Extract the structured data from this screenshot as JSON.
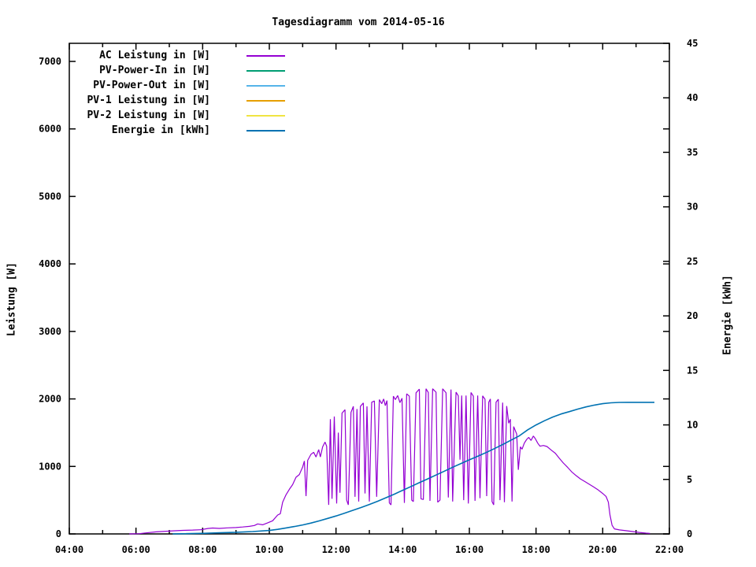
{
  "title": "Tagesdiagramm vom 2014-05-16",
  "chart_data": {
    "type": "line",
    "title": "Tagesdiagramm vom 2014-05-16",
    "grid": false,
    "legend_position": "top-left-inside",
    "colors": {
      "background": "#ffffff",
      "foreground": "#000000"
    },
    "x_axis": {
      "unit": "time",
      "start_hour": 4,
      "end_hour": 22,
      "major_tick_hours": [
        4,
        6,
        8,
        10,
        12,
        14,
        16,
        18,
        20,
        22
      ],
      "major_tick_labels": [
        "04:00",
        "06:00",
        "08:00",
        "10:00",
        "12:00",
        "14:00",
        "16:00",
        "18:00",
        "20:00",
        "22:00"
      ],
      "minor_tick_hours": [
        5,
        7,
        9,
        11,
        13,
        15,
        17,
        19,
        21
      ]
    },
    "y_axis_left": {
      "label": "Leistung [W]",
      "tick_values": [
        0,
        1000,
        2000,
        3000,
        4000,
        5000,
        6000,
        7000
      ],
      "range": [
        0,
        7268
      ]
    },
    "y_axis_right": {
      "label": "Energie [kWh]",
      "tick_values": [
        0,
        5,
        10,
        15,
        20,
        25,
        30,
        35,
        40,
        45
      ],
      "range": [
        0,
        45
      ],
      "mirror_left_ticks": true
    },
    "legend": [
      {
        "label": "AC Leistung in [W]",
        "color": "#9400D3"
      },
      {
        "label": "PV-Power-In in [W]",
        "color": "#009E73"
      },
      {
        "label": "PV-Power-Out in [W]",
        "color": "#56B4E9"
      },
      {
        "label": "PV-1 Leistung in [W]",
        "color": "#E69F00"
      },
      {
        "label": "PV-2 Leistung in [W]",
        "color": "#F0E442"
      },
      {
        "label": "Energie in [kWh]",
        "color": "#0072B2"
      }
    ],
    "series": [
      {
        "name": "AC Leistung in [W]",
        "color": "#9400D3",
        "axis": "left",
        "width": 1.2,
        "points": [
          [
            5.8,
            0
          ],
          [
            6.1,
            3
          ],
          [
            6.3,
            15
          ],
          [
            6.6,
            30
          ],
          [
            6.9,
            40
          ],
          [
            7.1,
            45
          ],
          [
            7.4,
            52
          ],
          [
            7.7,
            57
          ],
          [
            7.95,
            62
          ],
          [
            8.15,
            80
          ],
          [
            8.3,
            88
          ],
          [
            8.5,
            82
          ],
          [
            8.75,
            90
          ],
          [
            9.0,
            95
          ],
          [
            9.2,
            103
          ],
          [
            9.4,
            112
          ],
          [
            9.55,
            125
          ],
          [
            9.65,
            148
          ],
          [
            9.8,
            135
          ],
          [
            9.95,
            165
          ],
          [
            10.1,
            195
          ],
          [
            10.25,
            280
          ],
          [
            10.33,
            300
          ],
          [
            10.4,
            470
          ],
          [
            10.5,
            580
          ],
          [
            10.6,
            660
          ],
          [
            10.7,
            730
          ],
          [
            10.8,
            840
          ],
          [
            10.9,
            880
          ],
          [
            11.0,
            990
          ],
          [
            11.05,
            1080
          ],
          [
            11.1,
            560
          ],
          [
            11.15,
            1090
          ],
          [
            11.25,
            1180
          ],
          [
            11.33,
            1210
          ],
          [
            11.4,
            1140
          ],
          [
            11.48,
            1250
          ],
          [
            11.53,
            1140
          ],
          [
            11.6,
            1290
          ],
          [
            11.67,
            1360
          ],
          [
            11.72,
            1300
          ],
          [
            11.78,
            430
          ],
          [
            11.83,
            1700
          ],
          [
            11.88,
            520
          ],
          [
            11.95,
            1740
          ],
          [
            12.02,
            450
          ],
          [
            12.07,
            1500
          ],
          [
            12.12,
            610
          ],
          [
            12.18,
            1790
          ],
          [
            12.27,
            1840
          ],
          [
            12.32,
            500
          ],
          [
            12.37,
            430
          ],
          [
            12.45,
            1800
          ],
          [
            12.52,
            1890
          ],
          [
            12.57,
            550
          ],
          [
            12.63,
            1850
          ],
          [
            12.68,
            480
          ],
          [
            12.73,
            1890
          ],
          [
            12.82,
            1940
          ],
          [
            12.87,
            600
          ],
          [
            12.93,
            1890
          ],
          [
            13.0,
            480
          ],
          [
            13.07,
            1950
          ],
          [
            13.15,
            1970
          ],
          [
            13.22,
            550
          ],
          [
            13.3,
            1990
          ],
          [
            13.37,
            1930
          ],
          [
            13.43,
            2000
          ],
          [
            13.48,
            1900
          ],
          [
            13.53,
            1975
          ],
          [
            13.6,
            460
          ],
          [
            13.65,
            430
          ],
          [
            13.72,
            2040
          ],
          [
            13.78,
            1990
          ],
          [
            13.85,
            2050
          ],
          [
            13.92,
            1945
          ],
          [
            13.98,
            2010
          ],
          [
            14.05,
            460
          ],
          [
            14.12,
            2075
          ],
          [
            14.2,
            2040
          ],
          [
            14.27,
            500
          ],
          [
            14.32,
            480
          ],
          [
            14.4,
            2090
          ],
          [
            14.5,
            2145
          ],
          [
            14.55,
            520
          ],
          [
            14.62,
            510
          ],
          [
            14.7,
            2150
          ],
          [
            14.77,
            2095
          ],
          [
            14.82,
            490
          ],
          [
            14.9,
            2150
          ],
          [
            15.0,
            2100
          ],
          [
            15.05,
            470
          ],
          [
            15.12,
            500
          ],
          [
            15.2,
            2150
          ],
          [
            15.3,
            2090
          ],
          [
            15.37,
            540
          ],
          [
            15.45,
            2140
          ],
          [
            15.5,
            480
          ],
          [
            15.6,
            2100
          ],
          [
            15.67,
            2045
          ],
          [
            15.72,
            1100
          ],
          [
            15.77,
            2050
          ],
          [
            15.83,
            500
          ],
          [
            15.9,
            2050
          ],
          [
            15.97,
            450
          ],
          [
            16.05,
            2095
          ],
          [
            16.12,
            2040
          ],
          [
            16.17,
            490
          ],
          [
            16.25,
            2050
          ],
          [
            16.32,
            530
          ],
          [
            16.4,
            2045
          ],
          [
            16.47,
            1995
          ],
          [
            16.52,
            560
          ],
          [
            16.58,
            1950
          ],
          [
            16.63,
            2000
          ],
          [
            16.68,
            480
          ],
          [
            16.73,
            430
          ],
          [
            16.8,
            1950
          ],
          [
            16.87,
            1995
          ],
          [
            16.92,
            500
          ],
          [
            17.0,
            1945
          ],
          [
            17.05,
            470
          ],
          [
            17.12,
            1895
          ],
          [
            17.18,
            1640
          ],
          [
            17.23,
            1700
          ],
          [
            17.28,
            480
          ],
          [
            17.33,
            1590
          ],
          [
            17.42,
            1480
          ],
          [
            17.47,
            950
          ],
          [
            17.53,
            1290
          ],
          [
            17.58,
            1255
          ],
          [
            17.65,
            1345
          ],
          [
            17.72,
            1400
          ],
          [
            17.78,
            1430
          ],
          [
            17.85,
            1385
          ],
          [
            17.92,
            1450
          ],
          [
            17.98,
            1410
          ],
          [
            18.05,
            1345
          ],
          [
            18.12,
            1300
          ],
          [
            18.22,
            1310
          ],
          [
            18.33,
            1295
          ],
          [
            18.45,
            1245
          ],
          [
            18.58,
            1195
          ],
          [
            18.7,
            1120
          ],
          [
            18.82,
            1050
          ],
          [
            18.95,
            985
          ],
          [
            19.08,
            915
          ],
          [
            19.2,
            865
          ],
          [
            19.33,
            815
          ],
          [
            19.47,
            775
          ],
          [
            19.6,
            735
          ],
          [
            19.73,
            695
          ],
          [
            19.87,
            650
          ],
          [
            20.0,
            600
          ],
          [
            20.1,
            555
          ],
          [
            20.17,
            470
          ],
          [
            20.22,
            280
          ],
          [
            20.28,
            130
          ],
          [
            20.35,
            75
          ],
          [
            20.5,
            60
          ],
          [
            20.7,
            48
          ],
          [
            20.9,
            35
          ],
          [
            21.1,
            22
          ],
          [
            21.3,
            12
          ],
          [
            21.42,
            8
          ]
        ]
      },
      {
        "name": "Energie in [kWh]",
        "color": "#0072B2",
        "axis": "right",
        "width": 1.6,
        "points": [
          [
            7.1,
            0.0
          ],
          [
            7.5,
            0.02
          ],
          [
            8.0,
            0.05
          ],
          [
            8.5,
            0.1
          ],
          [
            9.0,
            0.15
          ],
          [
            9.5,
            0.22
          ],
          [
            10.0,
            0.32
          ],
          [
            10.25,
            0.42
          ],
          [
            10.5,
            0.55
          ],
          [
            10.75,
            0.68
          ],
          [
            11.0,
            0.82
          ],
          [
            11.25,
            1.0
          ],
          [
            11.5,
            1.2
          ],
          [
            11.75,
            1.42
          ],
          [
            12.0,
            1.65
          ],
          [
            12.25,
            1.9
          ],
          [
            12.5,
            2.16
          ],
          [
            12.75,
            2.42
          ],
          [
            13.0,
            2.7
          ],
          [
            13.25,
            3.0
          ],
          [
            13.5,
            3.32
          ],
          [
            13.75,
            3.65
          ],
          [
            14.0,
            4.0
          ],
          [
            14.25,
            4.35
          ],
          [
            14.5,
            4.7
          ],
          [
            14.75,
            5.05
          ],
          [
            15.0,
            5.4
          ],
          [
            15.25,
            5.76
          ],
          [
            15.5,
            6.12
          ],
          [
            15.75,
            6.46
          ],
          [
            16.0,
            6.8
          ],
          [
            16.25,
            7.12
          ],
          [
            16.5,
            7.46
          ],
          [
            16.75,
            7.82
          ],
          [
            17.0,
            8.2
          ],
          [
            17.25,
            8.6
          ],
          [
            17.5,
            9.0
          ],
          [
            17.75,
            9.55
          ],
          [
            18.0,
            10.0
          ],
          [
            18.25,
            10.38
          ],
          [
            18.5,
            10.72
          ],
          [
            18.75,
            11.0
          ],
          [
            19.0,
            11.22
          ],
          [
            19.25,
            11.45
          ],
          [
            19.5,
            11.65
          ],
          [
            19.75,
            11.82
          ],
          [
            20.0,
            11.95
          ],
          [
            20.25,
            12.03
          ],
          [
            20.5,
            12.06
          ],
          [
            20.75,
            12.07
          ],
          [
            21.0,
            12.07
          ],
          [
            21.3,
            12.07
          ],
          [
            21.55,
            12.07
          ]
        ]
      }
    ]
  }
}
